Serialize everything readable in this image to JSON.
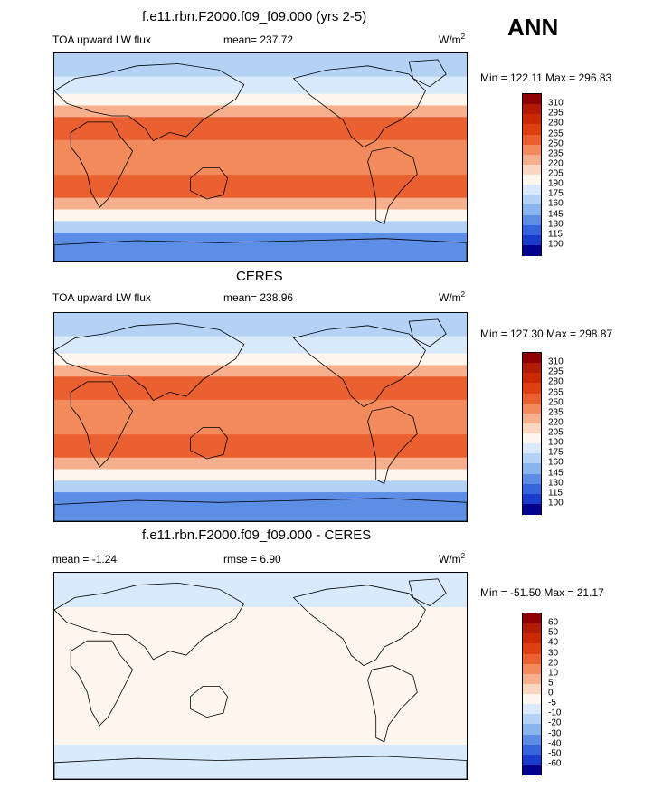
{
  "season": "ANN",
  "panels": [
    {
      "title": "f.e11.rbn.F2000.f09_f09.000 (yrs 2-5)",
      "variable": "TOA upward LW flux",
      "stat": "mean= 237.72",
      "units_base": "W/m",
      "units_exp": "2",
      "minmax": "Min = 122.11 Max = 296.83",
      "scale": "abs"
    },
    {
      "title": "CERES",
      "variable": "TOA upward LW flux",
      "stat": "mean= 238.96",
      "units_base": "W/m",
      "units_exp": "2",
      "minmax": "Min = 127.30 Max = 298.87",
      "scale": "abs"
    },
    {
      "title": "f.e11.rbn.F2000.f09_f09.000 - CERES",
      "variable": "mean =  -1.24",
      "stat": "rmse =   6.90",
      "units_base": "W/m",
      "units_exp": "2",
      "minmax": "Min = -51.50 Max =  21.17",
      "scale": "diff"
    }
  ],
  "colorbars": {
    "abs": {
      "labels": [
        "310",
        "295",
        "280",
        "265",
        "250",
        "235",
        "220",
        "205",
        "190",
        "175",
        "160",
        "145",
        "130",
        "115",
        "100"
      ],
      "colors": [
        "#8b0000",
        "#b31b00",
        "#cc2800",
        "#e04010",
        "#ea6030",
        "#f28a5c",
        "#f7b08e",
        "#fbd6c0",
        "#fff7ee",
        "#d8eafb",
        "#b3d2f5",
        "#8ab4ee",
        "#5c8ee6",
        "#3366dd",
        "#1a3ccc",
        "#00008b"
      ]
    },
    "diff": {
      "labels": [
        "60",
        "50",
        "40",
        "30",
        "20",
        "10",
        "5",
        "0",
        "-5",
        "-10",
        "-20",
        "-30",
        "-40",
        "-50",
        "-60"
      ],
      "colors": [
        "#8b0000",
        "#b31b00",
        "#cc2800",
        "#e04010",
        "#ea6030",
        "#f28a5c",
        "#f7b08e",
        "#fbd6c0",
        "#fff7ee",
        "#d8eafb",
        "#b3d2f5",
        "#8ab4ee",
        "#5c8ee6",
        "#3366dd",
        "#1a3ccc",
        "#00008b"
      ]
    }
  },
  "map_fields": {
    "abs": {
      "bands": [
        {
          "lat_from": 90,
          "lat_to": 70,
          "level": 10
        },
        {
          "lat_from": 70,
          "lat_to": 55,
          "level": 9
        },
        {
          "lat_from": 55,
          "lat_to": 45,
          "level": 8
        },
        {
          "lat_from": 45,
          "lat_to": 35,
          "level": 6
        },
        {
          "lat_from": 35,
          "lat_to": 15,
          "level": 4
        },
        {
          "lat_from": 15,
          "lat_to": -15,
          "level": 5
        },
        {
          "lat_from": -15,
          "lat_to": -35,
          "level": 4
        },
        {
          "lat_from": -35,
          "lat_to": -45,
          "level": 6
        },
        {
          "lat_from": -45,
          "lat_to": -55,
          "level": 8
        },
        {
          "lat_from": -55,
          "lat_to": -65,
          "level": 10
        },
        {
          "lat_from": -65,
          "lat_to": -90,
          "level": 12
        }
      ]
    },
    "diff": {
      "bands": [
        {
          "lat_from": 90,
          "lat_to": 60,
          "level": 9
        },
        {
          "lat_from": 60,
          "lat_to": 30,
          "level": 8
        },
        {
          "lat_from": 30,
          "lat_to": -30,
          "level": 8
        },
        {
          "lat_from": -30,
          "lat_to": -60,
          "level": 8
        },
        {
          "lat_from": -60,
          "lat_to": -90,
          "level": 9
        }
      ]
    }
  }
}
